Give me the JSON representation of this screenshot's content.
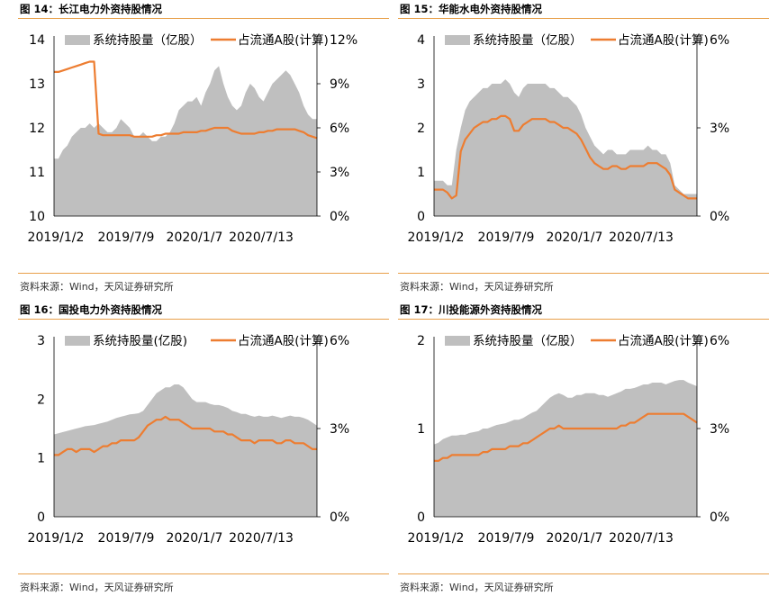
{
  "colors": {
    "area": "#BFBFBF",
    "line": "#ED7D31",
    "rule": "#E8A04A"
  },
  "chart_data": [
    {
      "type": "area",
      "fig_title": "图 14：长江电力外资持股情况",
      "source": "资料来源：Wind，天风证券研究所",
      "legend": [
        "系统持股量（亿股）",
        "占流通A股(计算)"
      ],
      "legend_placement": "top",
      "x_ticks": [
        "2019/1/2",
        "2019/7/9",
        "2020/1/7",
        "2020/7/13"
      ],
      "y_left": {
        "min": 10,
        "max": 14,
        "ticks": [
          "10",
          "11",
          "12",
          "13",
          "14"
        ]
      },
      "y_right": {
        "min": 0,
        "max": 12,
        "ticks": [
          "0%",
          "3%",
          "6%",
          "9%",
          "12%"
        ]
      },
      "series": [
        {
          "name": "系统持股量（亿股）",
          "axis": "left",
          "values": [
            11.3,
            11.3,
            11.5,
            11.6,
            11.8,
            11.9,
            12.0,
            12.0,
            12.1,
            12.0,
            12.1,
            12.0,
            11.9,
            11.9,
            12.0,
            12.2,
            12.1,
            12.0,
            11.8,
            11.8,
            11.9,
            11.8,
            11.7,
            11.7,
            11.8,
            11.8,
            11.9,
            12.1,
            12.4,
            12.5,
            12.6,
            12.6,
            12.7,
            12.5,
            12.8,
            13.0,
            13.3,
            13.4,
            13.0,
            12.7,
            12.5,
            12.4,
            12.5,
            12.8,
            13.0,
            12.9,
            12.7,
            12.6,
            12.8,
            13.0,
            13.1,
            13.2,
            13.3,
            13.2,
            13.0,
            12.8,
            12.5,
            12.3,
            12.2,
            12.2
          ]
        },
        {
          "name": "占流通A股(计算)",
          "axis": "right",
          "values": [
            9.8,
            9.8,
            9.9,
            10.0,
            10.1,
            10.2,
            10.3,
            10.4,
            10.5,
            10.5,
            5.6,
            5.5,
            5.5,
            5.5,
            5.5,
            5.5,
            5.5,
            5.5,
            5.4,
            5.4,
            5.4,
            5.4,
            5.4,
            5.5,
            5.5,
            5.6,
            5.6,
            5.6,
            5.6,
            5.7,
            5.7,
            5.7,
            5.7,
            5.8,
            5.8,
            5.9,
            6.0,
            6.0,
            6.0,
            6.0,
            5.8,
            5.7,
            5.6,
            5.6,
            5.6,
            5.6,
            5.7,
            5.7,
            5.8,
            5.8,
            5.9,
            5.9,
            5.9,
            5.9,
            5.9,
            5.8,
            5.7,
            5.5,
            5.4,
            5.3
          ]
        }
      ]
    },
    {
      "type": "area",
      "fig_title": "图 15：华能水电外资持股情况",
      "source": "资料来源：Wind，天风证券研究所",
      "legend": [
        "系统持股量（亿股）",
        "占流通A股(计算)"
      ],
      "legend_placement": "top",
      "x_ticks": [
        "2019/1/2",
        "2019/7/9",
        "2020/1/7",
        "2020/7/13"
      ],
      "y_left": {
        "min": 0,
        "max": 4,
        "ticks": [
          "0",
          "1",
          "2",
          "3",
          "4"
        ]
      },
      "y_right": {
        "min": 0,
        "max": 6,
        "ticks": [
          "0%",
          "3%",
          "6%"
        ]
      },
      "series": [
        {
          "name": "系统持股量（亿股）",
          "axis": "left",
          "values": [
            0.8,
            0.8,
            0.8,
            0.7,
            0.7,
            1.5,
            2.0,
            2.4,
            2.6,
            2.7,
            2.8,
            2.9,
            2.9,
            3.0,
            3.0,
            3.0,
            3.1,
            3.0,
            2.8,
            2.7,
            2.9,
            3.0,
            3.0,
            3.0,
            3.0,
            3.0,
            2.9,
            2.9,
            2.8,
            2.7,
            2.7,
            2.6,
            2.5,
            2.3,
            2.0,
            1.8,
            1.6,
            1.5,
            1.4,
            1.5,
            1.5,
            1.4,
            1.4,
            1.4,
            1.5,
            1.5,
            1.5,
            1.5,
            1.6,
            1.5,
            1.5,
            1.4,
            1.4,
            1.2,
            0.7,
            0.6,
            0.5,
            0.5,
            0.5,
            0.5
          ]
        },
        {
          "name": "占流通A股(计算)",
          "axis": "right",
          "values": [
            0.9,
            0.9,
            0.9,
            0.8,
            0.6,
            0.7,
            2.2,
            2.6,
            2.8,
            3.0,
            3.1,
            3.2,
            3.2,
            3.3,
            3.3,
            3.4,
            3.4,
            3.3,
            2.9,
            2.9,
            3.1,
            3.2,
            3.3,
            3.3,
            3.3,
            3.3,
            3.2,
            3.2,
            3.1,
            3.0,
            3.0,
            2.9,
            2.8,
            2.6,
            2.3,
            2.0,
            1.8,
            1.7,
            1.6,
            1.6,
            1.7,
            1.7,
            1.6,
            1.6,
            1.7,
            1.7,
            1.7,
            1.7,
            1.8,
            1.8,
            1.8,
            1.7,
            1.6,
            1.4,
            0.9,
            0.8,
            0.7,
            0.6,
            0.6,
            0.6
          ]
        }
      ]
    },
    {
      "type": "area",
      "fig_title": "图 16：国投电力外资持股情况",
      "source": "资料来源：Wind，天风证券研究所",
      "legend": [
        "系统持股量(亿股)",
        "占流通A股(计算)"
      ],
      "legend_placement": "top",
      "x_ticks": [
        "2019/1/2",
        "2019/7/9",
        "2020/1/7",
        "2020/7/13"
      ],
      "y_left": {
        "min": 0,
        "max": 3,
        "ticks": [
          "0",
          "1",
          "2",
          "3"
        ]
      },
      "y_right": {
        "min": 0,
        "max": 6,
        "ticks": [
          "0%",
          "3%",
          "6%"
        ]
      },
      "series": [
        {
          "name": "系统持股量(亿股)",
          "axis": "left",
          "values": [
            1.4,
            1.42,
            1.44,
            1.46,
            1.48,
            1.5,
            1.52,
            1.54,
            1.55,
            1.56,
            1.58,
            1.6,
            1.62,
            1.65,
            1.68,
            1.7,
            1.72,
            1.74,
            1.75,
            1.76,
            1.8,
            1.9,
            2.0,
            2.1,
            2.15,
            2.2,
            2.2,
            2.25,
            2.25,
            2.2,
            2.1,
            2.0,
            1.95,
            1.95,
            1.95,
            1.92,
            1.9,
            1.9,
            1.88,
            1.85,
            1.8,
            1.78,
            1.75,
            1.75,
            1.72,
            1.7,
            1.72,
            1.7,
            1.7,
            1.72,
            1.7,
            1.68,
            1.7,
            1.72,
            1.7,
            1.7,
            1.68,
            1.65,
            1.6,
            1.55
          ]
        },
        {
          "name": "占流通A股(计算)",
          "axis": "right",
          "values": [
            2.1,
            2.1,
            2.2,
            2.3,
            2.3,
            2.2,
            2.3,
            2.3,
            2.3,
            2.2,
            2.3,
            2.4,
            2.4,
            2.5,
            2.5,
            2.6,
            2.6,
            2.6,
            2.6,
            2.7,
            2.9,
            3.1,
            3.2,
            3.3,
            3.3,
            3.4,
            3.3,
            3.3,
            3.3,
            3.2,
            3.1,
            3.0,
            3.0,
            3.0,
            3.0,
            3.0,
            2.9,
            2.9,
            2.9,
            2.8,
            2.8,
            2.7,
            2.6,
            2.6,
            2.6,
            2.5,
            2.6,
            2.6,
            2.6,
            2.6,
            2.5,
            2.5,
            2.6,
            2.6,
            2.5,
            2.5,
            2.5,
            2.4,
            2.3,
            2.3
          ]
        }
      ]
    },
    {
      "type": "area",
      "fig_title": "图 17：川投能源外资持股情况",
      "source": "资料来源：Wind，天风证券研究所",
      "legend": [
        "系统持股量（亿股）",
        "占流通A股(计算)"
      ],
      "legend_placement": "top",
      "x_ticks": [
        "2019/1/2",
        "2019/7/9",
        "2020/1/7",
        "2020/7/13"
      ],
      "y_left": {
        "min": 0,
        "max": 2,
        "ticks": [
          "0",
          "1",
          "2"
        ]
      },
      "y_right": {
        "min": 0,
        "max": 6,
        "ticks": [
          "0%",
          "3%",
          "6%"
        ]
      },
      "series": [
        {
          "name": "系统持股量（亿股）",
          "axis": "left",
          "values": [
            0.82,
            0.84,
            0.88,
            0.9,
            0.92,
            0.92,
            0.93,
            0.93,
            0.95,
            0.96,
            0.97,
            1.0,
            1.0,
            1.02,
            1.04,
            1.05,
            1.06,
            1.08,
            1.1,
            1.1,
            1.12,
            1.15,
            1.18,
            1.2,
            1.25,
            1.3,
            1.35,
            1.38,
            1.4,
            1.38,
            1.35,
            1.35,
            1.38,
            1.38,
            1.4,
            1.4,
            1.4,
            1.38,
            1.38,
            1.36,
            1.38,
            1.4,
            1.42,
            1.45,
            1.45,
            1.46,
            1.48,
            1.5,
            1.5,
            1.52,
            1.52,
            1.52,
            1.5,
            1.52,
            1.54,
            1.55,
            1.55,
            1.52,
            1.5,
            1.48
          ]
        },
        {
          "name": "占流通A股(计算)",
          "axis": "right",
          "values": [
            1.9,
            1.9,
            2.0,
            2.0,
            2.1,
            2.1,
            2.1,
            2.1,
            2.1,
            2.1,
            2.1,
            2.2,
            2.2,
            2.3,
            2.3,
            2.3,
            2.3,
            2.4,
            2.4,
            2.4,
            2.5,
            2.5,
            2.6,
            2.7,
            2.8,
            2.9,
            3.0,
            3.0,
            3.1,
            3.0,
            3.0,
            3.0,
            3.0,
            3.0,
            3.0,
            3.0,
            3.0,
            3.0,
            3.0,
            3.0,
            3.0,
            3.0,
            3.1,
            3.1,
            3.2,
            3.2,
            3.3,
            3.4,
            3.5,
            3.5,
            3.5,
            3.5,
            3.5,
            3.5,
            3.5,
            3.5,
            3.5,
            3.4,
            3.3,
            3.2
          ]
        }
      ]
    }
  ]
}
